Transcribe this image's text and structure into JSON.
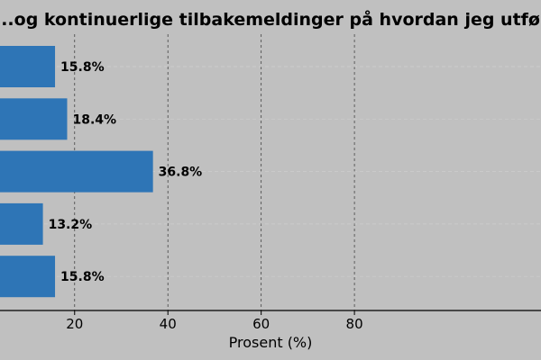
{
  "chart_data": {
    "type": "bar",
    "orientation": "horizontal",
    "title": "...og kontinuerlige tilbakemeldinger på hvordan jeg utføre",
    "xlabel": "Prosent (%)",
    "ylabel": "",
    "xlim": [
      4,
      120
    ],
    "x_ticks": [
      20,
      40,
      60,
      80
    ],
    "values": [
      15.8,
      18.4,
      36.8,
      13.2,
      15.8
    ],
    "value_labels": [
      "15.8%",
      "18.4%",
      "36.8%",
      "13.2%",
      "15.8%"
    ],
    "grid": "vertical dashed",
    "colors": {
      "bar": "#2e75b6",
      "background": "#c0c0c0",
      "grid": "#444444",
      "axis": "#000000"
    }
  }
}
